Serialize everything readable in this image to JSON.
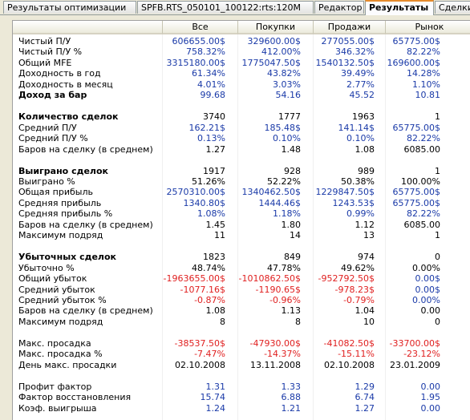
{
  "tabs": [
    {
      "label": "Результаты оптимизации",
      "active": false
    },
    {
      "label": "SPFB.RTS_050101_100122:rts:120M",
      "active": false
    },
    {
      "label": "Редактор",
      "active": false
    },
    {
      "label": "Результаты",
      "active": true
    },
    {
      "label": "Сделки",
      "active": false
    }
  ],
  "columns": [
    "Все",
    "Покупки",
    "Продажи",
    "Рынок"
  ],
  "colors": {
    "blue": "#1a3aa8",
    "red": "#e02020",
    "black": "#000000"
  },
  "rows": [
    {
      "label": "Чистый П/У",
      "values": [
        "606655.00$",
        "329600.00$",
        "277055.00$",
        "65775.00$"
      ],
      "color": "blue"
    },
    {
      "label": "Чистый П/У %",
      "values": [
        "758.32%",
        "412.00%",
        "346.32%",
        "82.22%"
      ],
      "color": "blue"
    },
    {
      "label": "Общий MFE",
      "values": [
        "3315180.00$",
        "1775047.50$",
        "1540132.50$",
        "169600.00$"
      ],
      "color": "blue"
    },
    {
      "label": "Доходность в год",
      "values": [
        "61.34%",
        "43.82%",
        "39.49%",
        "14.28%"
      ],
      "color": "blue"
    },
    {
      "label": "Доходность в месяц",
      "values": [
        "4.01%",
        "3.03%",
        "2.77%",
        "1.10%"
      ],
      "color": "blue"
    },
    {
      "label": "Доход за бар",
      "values": [
        "99.68",
        "54.16",
        "45.52",
        "10.81"
      ],
      "color": "blue",
      "bold": true
    },
    {
      "spacer": true
    },
    {
      "label": "Количество сделок",
      "values": [
        "3740",
        "1777",
        "1963",
        "1"
      ],
      "color": "black",
      "bold": true
    },
    {
      "label": "Средний П/У",
      "values": [
        "162.21$",
        "185.48$",
        "141.14$",
        "65775.00$"
      ],
      "color": "blue"
    },
    {
      "label": "Средний П/У %",
      "values": [
        "0.13%",
        "0.10%",
        "0.10%",
        "82.22%"
      ],
      "color": "blue"
    },
    {
      "label": "Баров на сделку (в среднем)",
      "values": [
        "1.27",
        "1.48",
        "1.08",
        "6085.00"
      ],
      "color": "black"
    },
    {
      "spacer": true
    },
    {
      "label": "Выиграно сделок",
      "values": [
        "1917",
        "928",
        "989",
        "1"
      ],
      "color": "black",
      "bold": true
    },
    {
      "label": "Выиграно %",
      "values": [
        "51.26%",
        "52.22%",
        "50.38%",
        "100.00%"
      ],
      "color": "black"
    },
    {
      "label": "Общая прибыль",
      "values": [
        "2570310.00$",
        "1340462.50$",
        "1229847.50$",
        "65775.00$"
      ],
      "color": "blue"
    },
    {
      "label": "Средняя прибыль",
      "values": [
        "1340.80$",
        "1444.46$",
        "1243.53$",
        "65775.00$"
      ],
      "color": "blue"
    },
    {
      "label": "Средняя прибыль %",
      "values": [
        "1.08%",
        "1.18%",
        "0.99%",
        "82.22%"
      ],
      "color": "blue"
    },
    {
      "label": "Баров на сделку (в среднем)",
      "values": [
        "1.45",
        "1.80",
        "1.12",
        "6085.00"
      ],
      "color": "black"
    },
    {
      "label": "Максимум подряд",
      "values": [
        "11",
        "14",
        "13",
        "1"
      ],
      "color": "black"
    },
    {
      "spacer": true
    },
    {
      "label": "Убыточных сделок",
      "values": [
        "1823",
        "849",
        "974",
        "0"
      ],
      "color": "black",
      "bold": true
    },
    {
      "label": "Убыточно %",
      "values": [
        "48.74%",
        "47.78%",
        "49.62%",
        "0.00%"
      ],
      "color": "black"
    },
    {
      "label": "Общий убыток",
      "values": [
        "-1963655.00$",
        "-1010862.50$",
        "-952792.50$",
        "0.00$"
      ],
      "color": "red",
      "lastColor": "blue"
    },
    {
      "label": "Средний убыток",
      "values": [
        "-1077.16$",
        "-1190.65$",
        "-978.23$",
        "0.00$"
      ],
      "color": "red",
      "lastColor": "blue"
    },
    {
      "label": "Средний убыток %",
      "values": [
        "-0.87%",
        "-0.96%",
        "-0.79%",
        "0.00%"
      ],
      "color": "red",
      "lastColor": "blue"
    },
    {
      "label": "Баров на сделку (в среднем)",
      "values": [
        "1.08",
        "1.13",
        "1.04",
        "0.00"
      ],
      "color": "black"
    },
    {
      "label": "Максимум подряд",
      "values": [
        "8",
        "8",
        "10",
        "0"
      ],
      "color": "black"
    },
    {
      "spacer": true
    },
    {
      "label": "Макс. просадка",
      "values": [
        "-38537.50$",
        "-47930.00$",
        "-41082.50$",
        "-33700.00$"
      ],
      "color": "red"
    },
    {
      "label": "Макс. просадка %",
      "values": [
        "-7.47%",
        "-14.37%",
        "-15.11%",
        "-23.12%"
      ],
      "color": "red"
    },
    {
      "label": "День макс. просадки",
      "values": [
        "02.10.2008",
        "13.11.2008",
        "02.10.2008",
        "23.01.2009"
      ],
      "color": "black"
    },
    {
      "spacer": true
    },
    {
      "label": "Профит фактор",
      "values": [
        "1.31",
        "1.33",
        "1.29",
        "0.00"
      ],
      "color": "blue"
    },
    {
      "label": "Фактор восстановления",
      "values": [
        "15.74",
        "6.88",
        "6.74",
        "1.95"
      ],
      "color": "blue"
    },
    {
      "label": "Коэф. выигрыша",
      "values": [
        "1.24",
        "1.21",
        "1.27",
        "0.00"
      ],
      "color": "blue"
    }
  ]
}
